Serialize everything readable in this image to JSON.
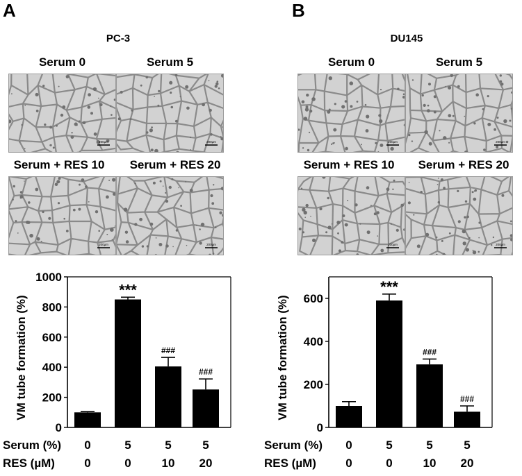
{
  "figure": {
    "panels": [
      {
        "letter": "A",
        "cell_line": "PC-3",
        "image_labels": [
          "Serum 0",
          "Serum 5",
          "Serum + RES 10",
          "Serum + RES 20"
        ],
        "scale_bar_text": "200µm"
      },
      {
        "letter": "B",
        "cell_line": "DU145",
        "image_labels": [
          "Serum 0",
          "Serum 5",
          "Serum + RES 10",
          "Serum + RES 20"
        ],
        "scale_bar_text": "200µm"
      }
    ],
    "treatment_rows": {
      "serum_label": "Serum (%)",
      "res_label": "RES  (µM)",
      "serum_values": [
        "0",
        "5",
        "5",
        "5"
      ],
      "res_values": [
        "0",
        "0",
        "10",
        "20"
      ]
    }
  },
  "chart_data": [
    {
      "type": "bar",
      "title": "",
      "ylabel": "VM tube formation (%)",
      "xlabel": "",
      "ylim": [
        0,
        1000
      ],
      "yticks": [
        0,
        200,
        400,
        600,
        800,
        1000
      ],
      "categories": [
        "0/0",
        "5/0",
        "5/10",
        "5/20"
      ],
      "values": [
        100,
        850,
        405,
        252
      ],
      "errors": [
        5,
        15,
        60,
        70
      ],
      "annotations": [
        "",
        "***",
        "###",
        "###"
      ],
      "bar_color": "#000000"
    },
    {
      "type": "bar",
      "title": "",
      "ylabel": "VM tube formation (%)",
      "xlabel": "",
      "ylim": [
        0,
        700
      ],
      "yticks": [
        0,
        200,
        400,
        600
      ],
      "categories": [
        "0/0",
        "5/0",
        "5/10",
        "5/20"
      ],
      "values": [
        100,
        590,
        293,
        73
      ],
      "errors": [
        20,
        30,
        25,
        27
      ],
      "annotations": [
        "",
        "***",
        "###",
        "###"
      ],
      "bar_color": "#000000"
    }
  ]
}
